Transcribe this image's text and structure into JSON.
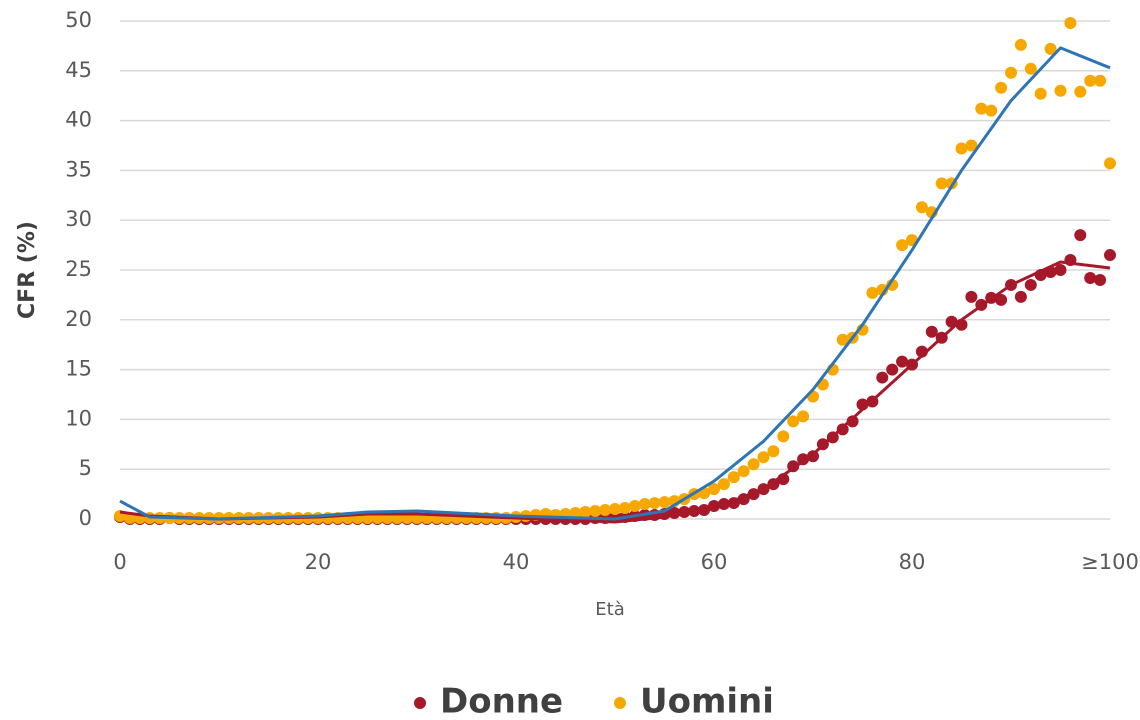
{
  "chart_data": {
    "type": "scatter",
    "xlabel": "Età",
    "ylabel": "CFR (%)",
    "x": [
      0,
      1,
      2,
      3,
      4,
      5,
      6,
      7,
      8,
      9,
      10,
      11,
      12,
      13,
      14,
      15,
      16,
      17,
      18,
      19,
      20,
      21,
      22,
      23,
      24,
      25,
      26,
      27,
      28,
      29,
      30,
      31,
      32,
      33,
      34,
      35,
      36,
      37,
      38,
      39,
      40,
      41,
      42,
      43,
      44,
      45,
      46,
      47,
      48,
      49,
      50,
      51,
      52,
      53,
      54,
      55,
      56,
      57,
      58,
      59,
      60,
      61,
      62,
      63,
      64,
      65,
      66,
      67,
      68,
      69,
      70,
      71,
      72,
      73,
      74,
      75,
      76,
      77,
      78,
      79,
      80,
      81,
      82,
      83,
      84,
      85,
      86,
      87,
      88,
      89,
      90,
      91,
      92,
      93,
      94,
      95,
      96,
      97,
      98,
      99,
      100
    ],
    "series": [
      {
        "name": "Donne",
        "color": "#a5192a",
        "values": [
          0.2,
          0,
          0,
          0,
          0,
          0.1,
          0,
          0,
          0,
          0,
          0,
          0,
          0,
          0,
          0,
          0,
          0,
          0,
          0,
          0,
          0,
          0,
          0,
          0,
          0,
          0,
          0,
          0,
          0,
          0,
          0,
          0,
          0,
          0,
          0,
          0,
          0,
          0,
          0,
          0,
          0,
          0,
          0,
          0,
          0,
          0,
          0,
          0,
          0.1,
          0.1,
          0.2,
          0.2,
          0.3,
          0.4,
          0.4,
          0.5,
          0.6,
          0.7,
          0.8,
          0.9,
          1.3,
          1.5,
          1.6,
          2.0,
          2.5,
          3.0,
          3.5,
          4.0,
          5.3,
          6.0,
          6.3,
          7.5,
          8.2,
          9.0,
          9.8,
          11.5,
          11.8,
          14.2,
          15.0,
          15.8,
          15.5,
          16.8,
          18.8,
          18.2,
          19.8,
          19.5,
          22.3,
          21.5,
          22.2,
          22.0,
          23.5,
          22.3,
          23.5,
          24.5,
          24.8,
          25.0,
          26.0,
          28.5,
          24.2,
          24.0,
          26.5
        ]
      },
      {
        "name": "Uomini",
        "color": "#f7a800",
        "values": [
          0.3,
          0.1,
          0.1,
          0.1,
          0.1,
          0.1,
          0.1,
          0.1,
          0.1,
          0.1,
          0.1,
          0.1,
          0.1,
          0.1,
          0.1,
          0.1,
          0.1,
          0.1,
          0.1,
          0.1,
          0.1,
          0.1,
          0.1,
          0.1,
          0.1,
          0.1,
          0.1,
          0.1,
          0.1,
          0.1,
          0.1,
          0.1,
          0.1,
          0.1,
          0.1,
          0.1,
          0.1,
          0.1,
          0.1,
          0.1,
          0.2,
          0.3,
          0.4,
          0.5,
          0.4,
          0.5,
          0.6,
          0.7,
          0.8,
          0.9,
          1.0,
          1.1,
          1.3,
          1.5,
          1.6,
          1.7,
          1.8,
          2.0,
          2.5,
          2.6,
          3.0,
          3.5,
          4.2,
          4.8,
          5.5,
          6.2,
          6.8,
          8.3,
          9.8,
          10.3,
          12.3,
          13.5,
          15.0,
          18.0,
          18.2,
          19.0,
          22.7,
          23.0,
          23.5,
          27.5,
          28.0,
          31.3,
          30.8,
          33.7,
          33.7,
          37.2,
          37.5,
          41.2,
          41.0,
          43.3,
          44.8,
          47.6,
          45.2,
          42.7,
          47.2,
          43.0,
          49.8,
          42.9,
          44.0,
          44.0,
          35.7
        ]
      }
    ],
    "trendlines": [
      {
        "color": "#a5192a",
        "x": [
          0,
          3,
          10,
          20,
          25,
          30,
          40,
          50,
          55,
          60,
          65,
          70,
          75,
          80,
          85,
          90,
          95,
          100
        ],
        "values": [
          0.7,
          0.3,
          0,
          0.2,
          0.5,
          0.5,
          0.1,
          -0.3,
          0.2,
          1.1,
          3,
          6.5,
          11,
          15.5,
          20,
          23.5,
          25.8,
          25.2
        ]
      },
      {
        "color": "#2e75b6",
        "x": [
          0,
          3,
          10,
          20,
          25,
          30,
          40,
          50,
          55,
          60,
          65,
          70,
          75,
          80,
          85,
          90,
          95,
          100
        ],
        "values": [
          1.8,
          0.2,
          0,
          0.3,
          0.7,
          0.8,
          0.3,
          0,
          0.8,
          3.8,
          7.8,
          13,
          19.5,
          27,
          35,
          42,
          47.3,
          45.3
        ]
      }
    ],
    "xlim": [
      0,
      100
    ],
    "xticks": [
      0,
      20,
      40,
      60,
      80,
      {
        "value": 100,
        "label": "≥100"
      }
    ],
    "ylim": [
      0,
      50
    ],
    "yticks": [
      0,
      5,
      10,
      15,
      20,
      25,
      30,
      35,
      40,
      45,
      50
    ],
    "grid": true,
    "legend": "bottom"
  }
}
